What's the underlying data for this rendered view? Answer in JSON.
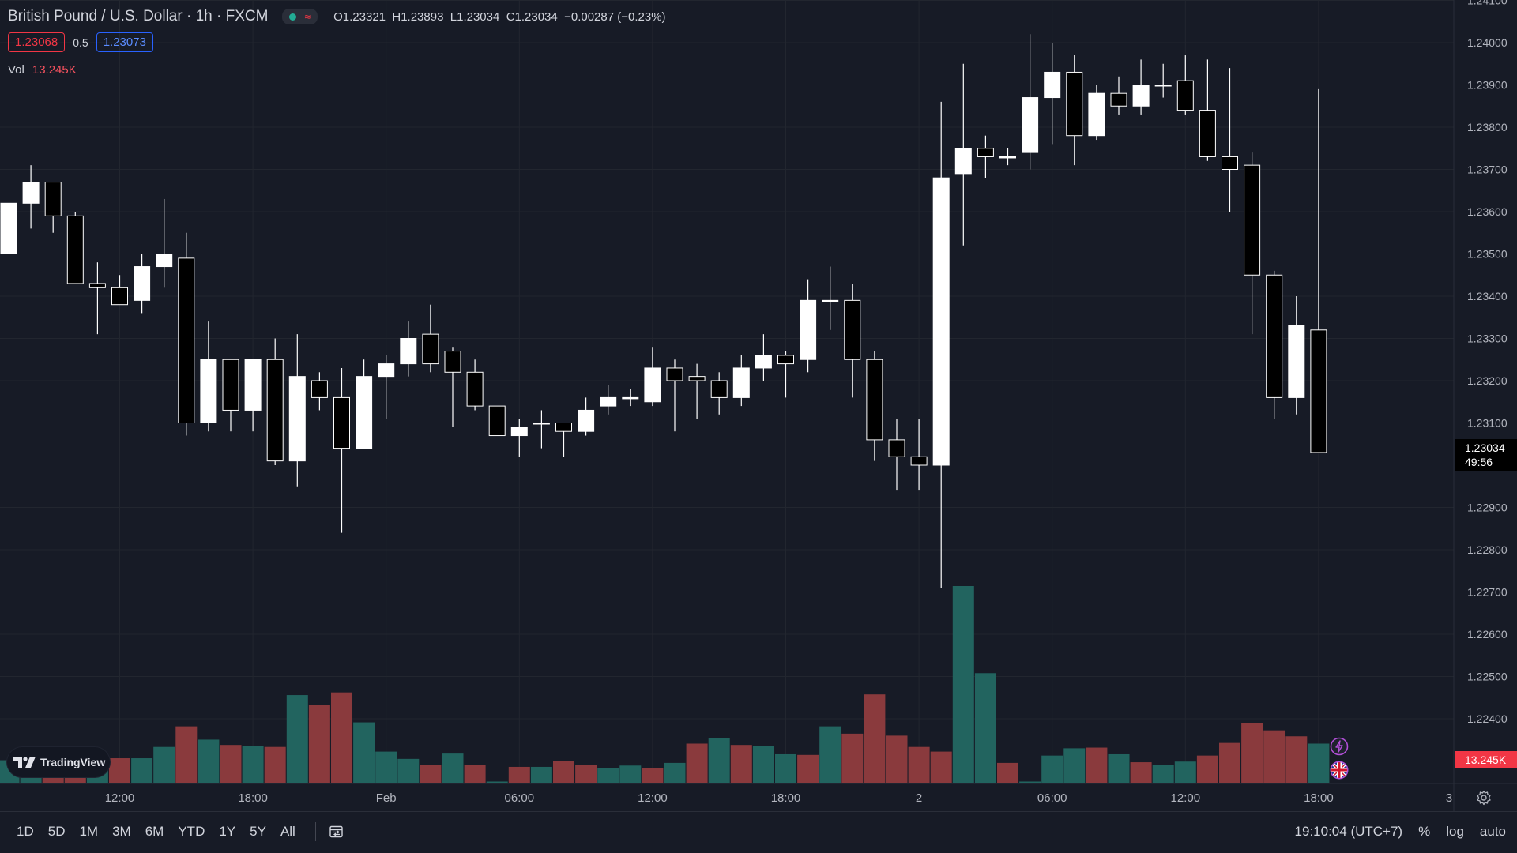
{
  "header": {
    "title": "British Pound / U.S. Dollar · 1h · FXCM",
    "ohlc": {
      "open": "O1.23321",
      "high": "H1.23893",
      "low": "L1.23034",
      "close": "C1.23034",
      "change": "−0.00287 (−0.23%)"
    },
    "bid": "1.23068",
    "spread": "0.5",
    "ask": "1.23073",
    "volume_label": "Vol",
    "volume_value": "13.245K"
  },
  "price_axis": {
    "last_price": "1.23034",
    "countdown": "49:56",
    "volume_tag": "13.245K"
  },
  "time_axis": {
    "page_number": "3"
  },
  "bottom_bar": {
    "ranges": [
      "1D",
      "5D",
      "1M",
      "3M",
      "6M",
      "YTD",
      "1Y",
      "5Y",
      "All"
    ],
    "clock": "19:10:04 (UTC+7)",
    "percent_label": "%",
    "log_label": "log",
    "auto_label": "auto"
  },
  "watermark": {
    "brand": "TradingView"
  },
  "colors": {
    "background": "#171b26",
    "candle_up": "#ffffff",
    "candle_down": "#000000",
    "volume_up": "#22645f",
    "volume_down": "#8a3a3d",
    "red": "#f23645",
    "blue": "#2962ff"
  },
  "icons": [
    "calendar-range-icon",
    "gear-icon",
    "lightning-icon",
    "uk-flag-icon",
    "tradingview-logo-icon"
  ],
  "chart_data": {
    "type": "candlestick",
    "symbol": "GBPUSD",
    "interval": "1h",
    "y_ticks": [
      1.241,
      1.24,
      1.239,
      1.238,
      1.237,
      1.236,
      1.235,
      1.234,
      1.233,
      1.232,
      1.231,
      1.229,
      1.228,
      1.227,
      1.226,
      1.225,
      1.224
    ],
    "y_range": [
      1.2237,
      1.2411
    ],
    "x_ticks": [
      {
        "label": "12:00",
        "index": 5
      },
      {
        "label": "18:00",
        "index": 11
      },
      {
        "label": "Feb",
        "index": 17
      },
      {
        "label": "06:00",
        "index": 23
      },
      {
        "label": "12:00",
        "index": 29
      },
      {
        "label": "18:00",
        "index": 35
      },
      {
        "label": "2",
        "index": 41
      },
      {
        "label": "06:00",
        "index": 47
      },
      {
        "label": "12:00",
        "index": 53
      },
      {
        "label": "18:00",
        "index": 59
      }
    ],
    "candles": [
      {
        "o": 1.235,
        "h": 1.2362,
        "l": 1.235,
        "c": 1.2362
      },
      {
        "o": 1.2362,
        "h": 1.2371,
        "l": 1.2356,
        "c": 1.2367
      },
      {
        "o": 1.2367,
        "h": 1.2367,
        "l": 1.2355,
        "c": 1.2359
      },
      {
        "o": 1.2359,
        "h": 1.236,
        "l": 1.2343,
        "c": 1.2343
      },
      {
        "o": 1.2343,
        "h": 1.2348,
        "l": 1.2331,
        "c": 1.2342
      },
      {
        "o": 1.2342,
        "h": 1.2345,
        "l": 1.2338,
        "c": 1.2338
      },
      {
        "o": 1.2339,
        "h": 1.235,
        "l": 1.2336,
        "c": 1.2347
      },
      {
        "o": 1.2347,
        "h": 1.2363,
        "l": 1.2342,
        "c": 1.235
      },
      {
        "o": 1.2349,
        "h": 1.2355,
        "l": 1.2307,
        "c": 1.231
      },
      {
        "o": 1.231,
        "h": 1.2334,
        "l": 1.2308,
        "c": 1.2325
      },
      {
        "o": 1.2325,
        "h": 1.2325,
        "l": 1.2308,
        "c": 1.2313
      },
      {
        "o": 1.2313,
        "h": 1.2325,
        "l": 1.2308,
        "c": 1.2325
      },
      {
        "o": 1.2325,
        "h": 1.233,
        "l": 1.23,
        "c": 1.2301
      },
      {
        "o": 1.2301,
        "h": 1.2331,
        "l": 1.2295,
        "c": 1.2321
      },
      {
        "o": 1.232,
        "h": 1.2322,
        "l": 1.2313,
        "c": 1.2316
      },
      {
        "o": 1.2316,
        "h": 1.2323,
        "l": 1.2284,
        "c": 1.2304
      },
      {
        "o": 1.2304,
        "h": 1.2325,
        "l": 1.2304,
        "c": 1.2321
      },
      {
        "o": 1.2321,
        "h": 1.2326,
        "l": 1.2311,
        "c": 1.2324
      },
      {
        "o": 1.2324,
        "h": 1.2334,
        "l": 1.2321,
        "c": 1.233
      },
      {
        "o": 1.2331,
        "h": 1.2338,
        "l": 1.2322,
        "c": 1.2324
      },
      {
        "o": 1.2327,
        "h": 1.2328,
        "l": 1.2309,
        "c": 1.2322
      },
      {
        "o": 1.2322,
        "h": 1.2325,
        "l": 1.2313,
        "c": 1.2314
      },
      {
        "o": 1.2314,
        "h": 1.2314,
        "l": 1.2307,
        "c": 1.2307
      },
      {
        "o": 1.2307,
        "h": 1.2311,
        "l": 1.2302,
        "c": 1.2309
      },
      {
        "o": 1.231,
        "h": 1.2313,
        "l": 1.2304,
        "c": 1.231
      },
      {
        "o": 1.231,
        "h": 1.231,
        "l": 1.2302,
        "c": 1.2308
      },
      {
        "o": 1.2308,
        "h": 1.2316,
        "l": 1.2307,
        "c": 1.2313
      },
      {
        "o": 1.2314,
        "h": 1.2319,
        "l": 1.2312,
        "c": 1.2316
      },
      {
        "o": 1.2316,
        "h": 1.2318,
        "l": 1.2314,
        "c": 1.2316
      },
      {
        "o": 1.2315,
        "h": 1.2328,
        "l": 1.2314,
        "c": 1.2323
      },
      {
        "o": 1.2323,
        "h": 1.2325,
        "l": 1.2308,
        "c": 1.232
      },
      {
        "o": 1.2321,
        "h": 1.2324,
        "l": 1.2311,
        "c": 1.232
      },
      {
        "o": 1.232,
        "h": 1.2322,
        "l": 1.2312,
        "c": 1.2316
      },
      {
        "o": 1.2316,
        "h": 1.2326,
        "l": 1.2314,
        "c": 1.2323
      },
      {
        "o": 1.2323,
        "h": 1.2331,
        "l": 1.232,
        "c": 1.2326
      },
      {
        "o": 1.2326,
        "h": 1.2327,
        "l": 1.2316,
        "c": 1.2324
      },
      {
        "o": 1.2325,
        "h": 1.2344,
        "l": 1.2322,
        "c": 1.2339
      },
      {
        "o": 1.2339,
        "h": 1.2347,
        "l": 1.2332,
        "c": 1.2339
      },
      {
        "o": 1.2339,
        "h": 1.2343,
        "l": 1.2316,
        "c": 1.2325
      },
      {
        "o": 1.2325,
        "h": 1.2327,
        "l": 1.2301,
        "c": 1.2306
      },
      {
        "o": 1.2306,
        "h": 1.2311,
        "l": 1.2294,
        "c": 1.2302
      },
      {
        "o": 1.2302,
        "h": 1.2311,
        "l": 1.2294,
        "c": 1.23
      },
      {
        "o": 1.23,
        "h": 1.2386,
        "l": 1.2271,
        "c": 1.2368
      },
      {
        "o": 1.2369,
        "h": 1.2395,
        "l": 1.2352,
        "c": 1.2375
      },
      {
        "o": 1.2375,
        "h": 1.2378,
        "l": 1.2368,
        "c": 1.2373
      },
      {
        "o": 1.2373,
        "h": 1.2375,
        "l": 1.2371,
        "c": 1.2373
      },
      {
        "o": 1.2374,
        "h": 1.2402,
        "l": 1.237,
        "c": 1.2387
      },
      {
        "o": 1.2387,
        "h": 1.24,
        "l": 1.2376,
        "c": 1.2393
      },
      {
        "o": 1.2393,
        "h": 1.2397,
        "l": 1.2371,
        "c": 1.2378
      },
      {
        "o": 1.2378,
        "h": 1.239,
        "l": 1.2377,
        "c": 1.2388
      },
      {
        "o": 1.2388,
        "h": 1.2392,
        "l": 1.2383,
        "c": 1.2385
      },
      {
        "o": 1.2385,
        "h": 1.2396,
        "l": 1.2383,
        "c": 1.239
      },
      {
        "o": 1.239,
        "h": 1.2395,
        "l": 1.2387,
        "c": 1.239
      },
      {
        "o": 1.2391,
        "h": 1.2397,
        "l": 1.2383,
        "c": 1.2384
      },
      {
        "o": 1.2384,
        "h": 1.2396,
        "l": 1.2372,
        "c": 1.2373
      },
      {
        "o": 1.2373,
        "h": 1.2394,
        "l": 1.236,
        "c": 1.237
      },
      {
        "o": 1.2371,
        "h": 1.2374,
        "l": 1.2331,
        "c": 1.2345
      },
      {
        "o": 1.2345,
        "h": 1.2346,
        "l": 1.2311,
        "c": 1.2316
      },
      {
        "o": 1.2316,
        "h": 1.234,
        "l": 1.2312,
        "c": 1.2333
      },
      {
        "o": 1.2332,
        "h": 1.2389,
        "l": 1.2303,
        "c": 1.2303
      }
    ],
    "volume": {
      "axis_max_k": 13.245,
      "bars": [
        {
          "v": 0.35,
          "dir": "up"
        },
        {
          "v": 0.3,
          "dir": "up"
        },
        {
          "v": 0.3,
          "dir": "down"
        },
        {
          "v": 0.35,
          "dir": "down"
        },
        {
          "v": 0.35,
          "dir": "up"
        },
        {
          "v": 0.38,
          "dir": "down"
        },
        {
          "v": 0.38,
          "dir": "up"
        },
        {
          "v": 0.55,
          "dir": "up"
        },
        {
          "v": 0.86,
          "dir": "down"
        },
        {
          "v": 0.66,
          "dir": "up"
        },
        {
          "v": 0.58,
          "dir": "down"
        },
        {
          "v": 0.56,
          "dir": "up"
        },
        {
          "v": 0.55,
          "dir": "down"
        },
        {
          "v": 1.33,
          "dir": "up"
        },
        {
          "v": 1.18,
          "dir": "down"
        },
        {
          "v": 1.37,
          "dir": "down"
        },
        {
          "v": 0.92,
          "dir": "up"
        },
        {
          "v": 0.48,
          "dir": "up"
        },
        {
          "v": 0.37,
          "dir": "up"
        },
        {
          "v": 0.28,
          "dir": "down"
        },
        {
          "v": 0.45,
          "dir": "up"
        },
        {
          "v": 0.28,
          "dir": "down"
        },
        {
          "v": 0.03,
          "dir": "up"
        },
        {
          "v": 0.25,
          "dir": "down"
        },
        {
          "v": 0.25,
          "dir": "up"
        },
        {
          "v": 0.34,
          "dir": "down"
        },
        {
          "v": 0.28,
          "dir": "down"
        },
        {
          "v": 0.23,
          "dir": "up"
        },
        {
          "v": 0.27,
          "dir": "up"
        },
        {
          "v": 0.23,
          "dir": "down"
        },
        {
          "v": 0.31,
          "dir": "up"
        },
        {
          "v": 0.6,
          "dir": "down"
        },
        {
          "v": 0.68,
          "dir": "up"
        },
        {
          "v": 0.58,
          "dir": "down"
        },
        {
          "v": 0.56,
          "dir": "up"
        },
        {
          "v": 0.44,
          "dir": "up"
        },
        {
          "v": 0.43,
          "dir": "down"
        },
        {
          "v": 0.86,
          "dir": "up"
        },
        {
          "v": 0.75,
          "dir": "down"
        },
        {
          "v": 1.34,
          "dir": "down"
        },
        {
          "v": 0.72,
          "dir": "down"
        },
        {
          "v": 0.55,
          "dir": "down"
        },
        {
          "v": 0.48,
          "dir": "down"
        },
        {
          "v": 2.97,
          "dir": "up"
        },
        {
          "v": 1.66,
          "dir": "up"
        },
        {
          "v": 0.31,
          "dir": "down"
        },
        {
          "v": 0.03,
          "dir": "up"
        },
        {
          "v": 0.42,
          "dir": "up"
        },
        {
          "v": 0.53,
          "dir": "up"
        },
        {
          "v": 0.54,
          "dir": "down"
        },
        {
          "v": 0.44,
          "dir": "up"
        },
        {
          "v": 0.32,
          "dir": "down"
        },
        {
          "v": 0.28,
          "dir": "up"
        },
        {
          "v": 0.33,
          "dir": "up"
        },
        {
          "v": 0.42,
          "dir": "down"
        },
        {
          "v": 0.61,
          "dir": "down"
        },
        {
          "v": 0.91,
          "dir": "down"
        },
        {
          "v": 0.8,
          "dir": "down"
        },
        {
          "v": 0.71,
          "dir": "down"
        },
        {
          "v": 0.6,
          "dir": "up"
        }
      ]
    }
  }
}
